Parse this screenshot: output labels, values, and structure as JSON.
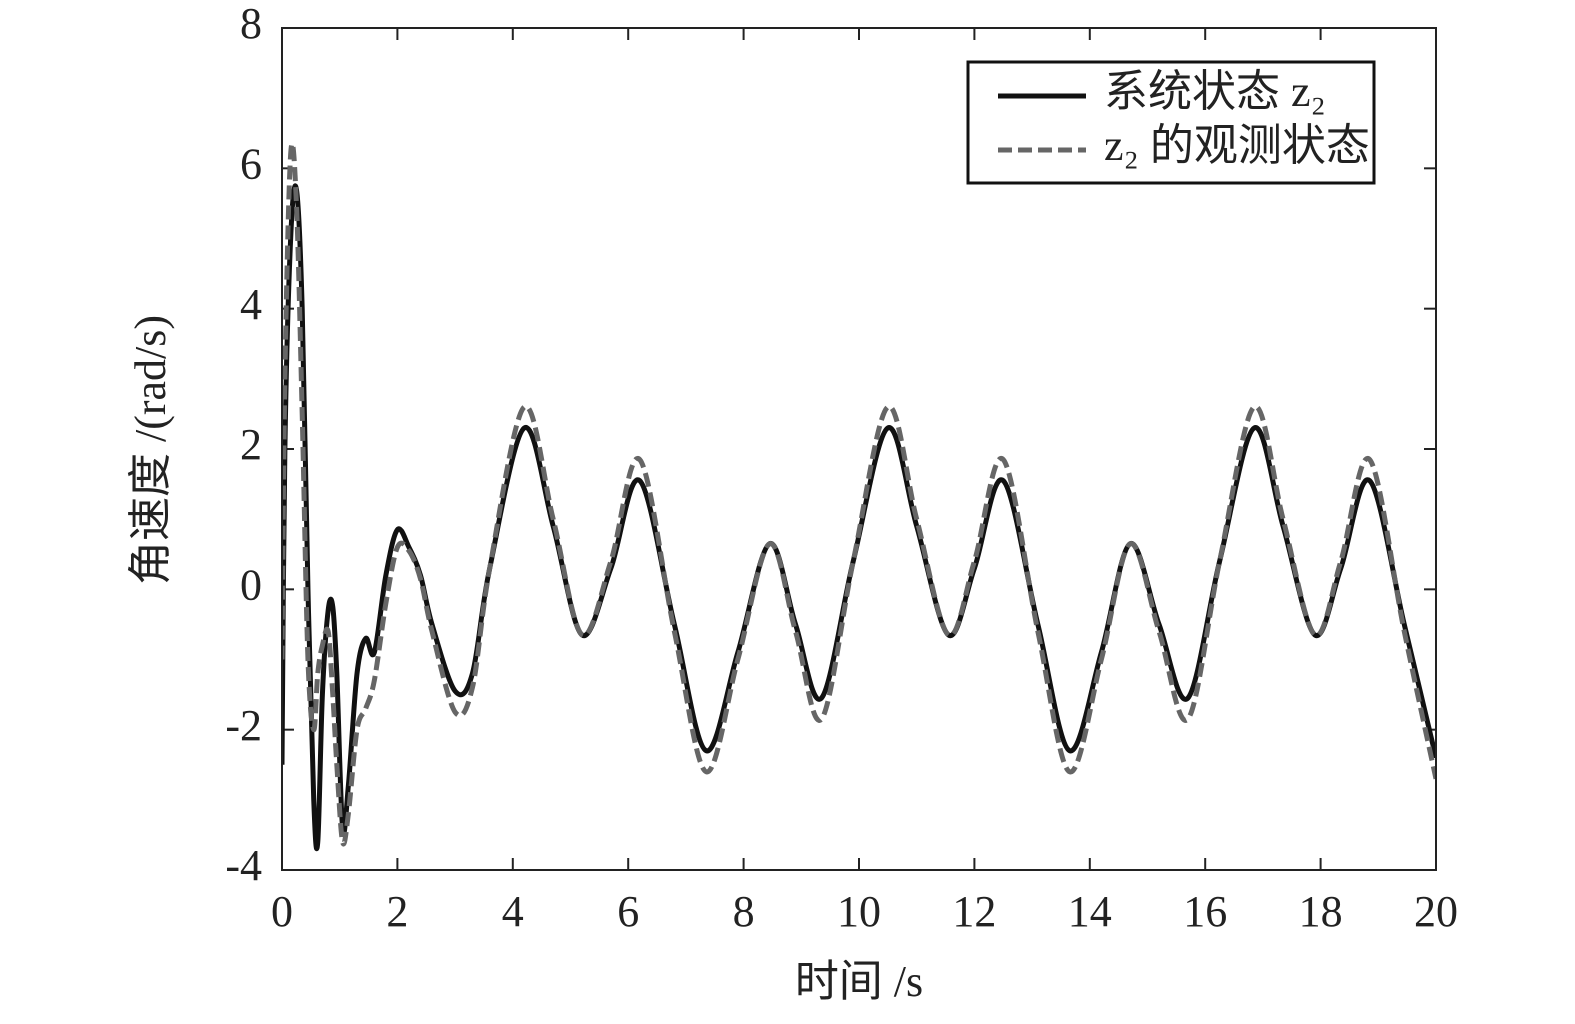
{
  "chart_data": {
    "type": "line",
    "xlabel": "时间 /s",
    "ylabel": "角速度 /(rad/s)",
    "x": [
      0,
      0.05,
      0.15,
      0.25,
      0.35,
      0.45,
      0.55,
      0.62,
      0.7,
      0.8,
      0.88,
      0.95,
      1.05,
      1.15,
      1.3,
      1.45,
      1.6,
      1.8,
      2.0,
      2.2,
      2.4,
      2.6,
      3.0,
      3.3,
      3.6,
      4.2,
      4.7,
      5.2,
      5.7,
      6.2,
      6.8,
      7.35,
      7.9,
      8.45,
      8.9,
      9.35,
      9.9,
      10.5,
      11.0,
      11.55,
      12.0,
      12.5,
      13.1,
      13.65,
      14.2,
      14.7,
      15.2,
      15.7,
      16.25,
      16.85,
      17.35,
      17.9,
      18.35,
      18.85,
      19.45,
      20
    ],
    "series": [
      {
        "name": "系统状态 z₂",
        "color": "#111111",
        "dash": false,
        "values": [
          -2.5,
          2,
          5.0,
          5.7,
          4,
          0,
          -3,
          -3.6,
          -1.5,
          -0.3,
          -0.25,
          -1.2,
          -3.4,
          -2.8,
          -1.2,
          -0.7,
          -0.9,
          0.2,
          0.85,
          0.6,
          0.2,
          -0.5,
          -1.45,
          -1.2,
          0.3,
          2.3,
          0.9,
          -0.65,
          0.3,
          1.55,
          -0.5,
          -2.3,
          -0.9,
          0.65,
          -0.5,
          -1.55,
          0.4,
          2.3,
          0.9,
          -0.65,
          0.3,
          1.55,
          -0.5,
          -2.3,
          -0.9,
          0.65,
          -0.5,
          -1.55,
          0.4,
          2.3,
          0.9,
          -0.65,
          0.3,
          1.55,
          -0.5,
          -2.4
        ]
      },
      {
        "name": "z₂ 的观测状态",
        "color": "#666666",
        "dash": true,
        "values": [
          -1.0,
          3,
          6.2,
          5.5,
          2.5,
          -1,
          -2,
          -1.2,
          -0.8,
          -0.6,
          -1.5,
          -2.5,
          -3.6,
          -3.2,
          -2.0,
          -1.7,
          -1.3,
          -0.2,
          0.6,
          0.55,
          0.15,
          -0.6,
          -1.75,
          -1.4,
          0.3,
          2.6,
          1.0,
          -0.65,
          0.4,
          1.85,
          -0.6,
          -2.6,
          -1.0,
          0.65,
          -0.6,
          -1.85,
          0.4,
          2.6,
          1.0,
          -0.65,
          0.4,
          1.85,
          -0.6,
          -2.6,
          -1.0,
          0.65,
          -0.6,
          -1.85,
          0.4,
          2.6,
          1.0,
          -0.65,
          0.4,
          1.85,
          -0.6,
          -2.7
        ]
      }
    ],
    "xlim": [
      0,
      20
    ],
    "xticks": [
      0,
      2,
      4,
      6,
      8,
      10,
      12,
      14,
      16,
      18,
      20
    ],
    "ylim": [
      -4,
      8
    ],
    "yticks": [
      -4,
      -2,
      0,
      2,
      4,
      6,
      8
    ],
    "grid": false,
    "legend": "upper right"
  }
}
